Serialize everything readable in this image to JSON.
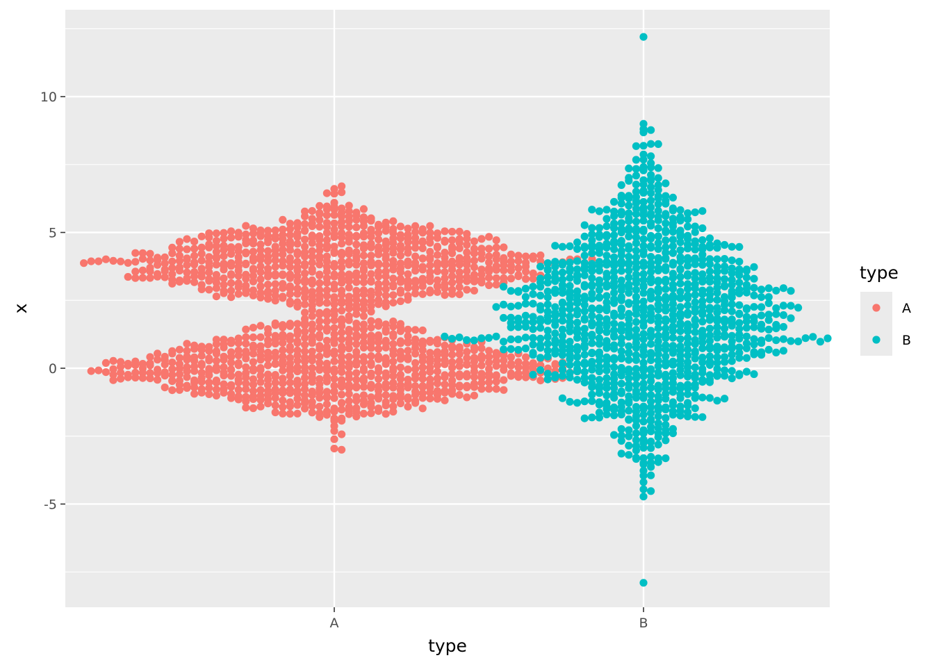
{
  "chart_data": {
    "type": "scatter",
    "subtype": "beeswarm",
    "title": "",
    "xlabel": "type",
    "ylabel": "x",
    "categories": [
      "A",
      "B"
    ],
    "ylim": [
      -8.8,
      13.2
    ],
    "yticks": [
      -5,
      0,
      5,
      10
    ],
    "ytick_labels": [
      "-5",
      "0",
      "5",
      "10"
    ],
    "grid": true,
    "legend": {
      "title": "type",
      "position": "right",
      "entries": [
        "A",
        "B"
      ]
    },
    "colors": {
      "A": "#F8766D",
      "B": "#00BFC4",
      "panel": "#EBEBEB",
      "grid": "#FFFFFF"
    },
    "series": [
      {
        "name": "A",
        "category": "A",
        "modes": [
          {
            "center": 3.9,
            "sd": 1.0
          },
          {
            "center": 0.0,
            "sd": 0.9
          }
        ],
        "range": [
          -3.0,
          6.7
        ]
      },
      {
        "name": "B",
        "category": "B",
        "modes": [
          {
            "center": 2.0,
            "sd": 2.4
          }
        ],
        "range": [
          -7.9,
          12.2
        ]
      }
    ]
  }
}
